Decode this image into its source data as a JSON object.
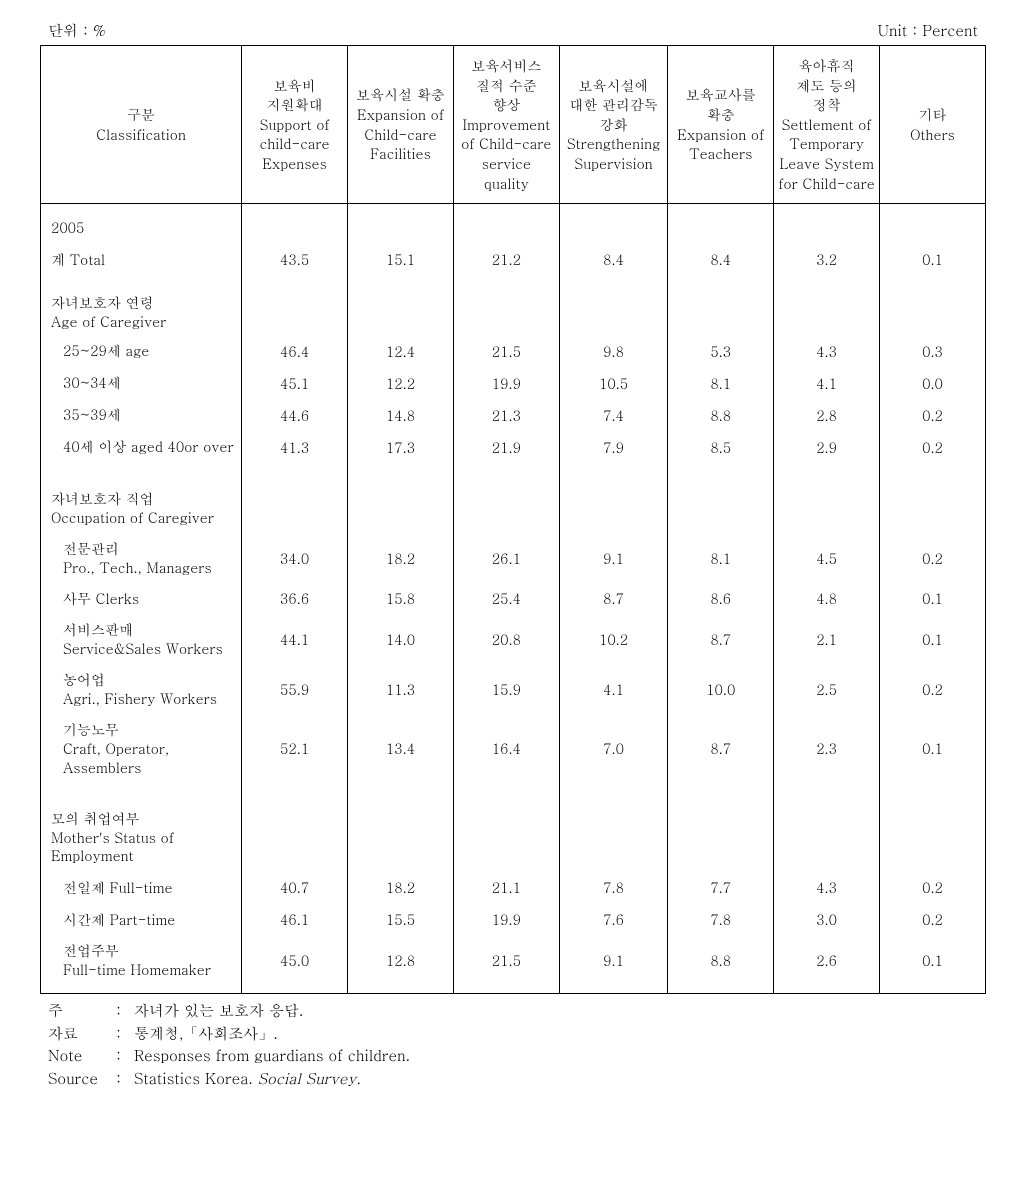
{
  "unit_left": "단위 : %",
  "unit_right": "Unit : Percent",
  "columns": {
    "c0": "구분\nClassification",
    "c1": "보육비\n지원확대\nSupport of\nchild-care\nExpenses",
    "c2": "보육시설 확충\nExpansion of\nChild-care\nFacilities",
    "c3": "보육서비스\n질적 수준\n향상\nImprovement\nof Child-care\nservice quality",
    "c4": "보육시설에\n대한 관리감독\n강화\nStrengthening\nSupervision",
    "c5": "보육교사를\n확충\nExpansion of\nTeachers",
    "c6": "육아휴직\n제도 등의\n정착\nSettlement of\nTemporary\nLeave System\nfor Child-care",
    "c7": "기타\nOthers"
  },
  "rows": {
    "year": "2005",
    "total_label": "계 Total",
    "total": [
      "43.5",
      "15.1",
      "21.2",
      "8.4",
      "8.4",
      "3.2",
      "0.1"
    ],
    "age_header": "자녀보호자 연령\nAge of Caregiver",
    "age1_label": "25~29세 age",
    "age1": [
      "46.4",
      "12.4",
      "21.5",
      "9.8",
      "5.3",
      "4.3",
      "0.3"
    ],
    "age2_label": "30~34세",
    "age2": [
      "45.1",
      "12.2",
      "19.9",
      "10.5",
      "8.1",
      "4.1",
      "0.0"
    ],
    "age3_label": "35~39세",
    "age3": [
      "44.6",
      "14.8",
      "21.3",
      "7.4",
      "8.8",
      "2.8",
      "0.2"
    ],
    "age4_label": "40세 이상 aged 40or over",
    "age4": [
      "41.3",
      "17.3",
      "21.9",
      "7.9",
      "8.5",
      "2.9",
      "0.2"
    ],
    "occ_header": "자녀보호자 직업\nOccupation of Caregiver",
    "occ1_label": "전문관리\nPro., Tech., Managers",
    "occ1": [
      "34.0",
      "18.2",
      "26.1",
      "9.1",
      "8.1",
      "4.5",
      "0.2"
    ],
    "occ2_label": "사무 Clerks",
    "occ2": [
      "36.6",
      "15.8",
      "25.4",
      "8.7",
      "8.6",
      "4.8",
      "0.1"
    ],
    "occ3_label": "서비스판매\nService&Sales Workers",
    "occ3": [
      "44.1",
      "14.0",
      "20.8",
      "10.2",
      "8.7",
      "2.1",
      "0.1"
    ],
    "occ4_label": "농어업\nAgri., Fishery Workers",
    "occ4": [
      "55.9",
      "11.3",
      "15.9",
      "4.1",
      "10.0",
      "2.5",
      "0.2"
    ],
    "occ5_label": "기능노무\nCraft, Operator, Assemblers",
    "occ5": [
      "52.1",
      "13.4",
      "16.4",
      "7.0",
      "8.7",
      "2.3",
      "0.1"
    ],
    "emp_header": "모의 취업여부\nMother's Status of Employment",
    "emp1_label": "전일제  Full-time",
    "emp1": [
      "40.7",
      "18.2",
      "21.1",
      "7.8",
      "7.7",
      "4.3",
      "0.2"
    ],
    "emp2_label": "시간제  Part-time",
    "emp2": [
      "46.1",
      "15.5",
      "19.9",
      "7.6",
      "7.8",
      "3.0",
      "0.2"
    ],
    "emp3_label": "전업주부\nFull-time Homemaker",
    "emp3": [
      "45.0",
      "12.8",
      "21.5",
      "9.1",
      "8.8",
      "2.6",
      "0.1"
    ]
  },
  "notes": {
    "n1_label": "주",
    "n1_text": "자녀가 있는 보호자 응답.",
    "n2_label": "자료",
    "n2_text": "통계청,「사회조사」.",
    "n3_label": "Note",
    "n3_text": "Responses from guardians of children.",
    "n4_label": "Source",
    "n4_text_a": "Statistics Korea.",
    "n4_text_b": "Social Survey."
  }
}
